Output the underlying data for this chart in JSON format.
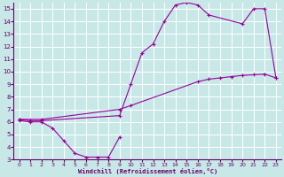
{
  "xlabel": "Windchill (Refroidissement éolien,°C)",
  "bg_color": "#c8e8e8",
  "grid_color": "#ffffff",
  "line_color": "#990099",
  "xlim": [
    -0.5,
    23.5
  ],
  "ylim": [
    3,
    15.5
  ],
  "xticks": [
    0,
    1,
    2,
    3,
    4,
    5,
    6,
    7,
    8,
    9,
    10,
    11,
    12,
    13,
    14,
    15,
    16,
    17,
    18,
    19,
    20,
    21,
    22,
    23
  ],
  "yticks": [
    3,
    4,
    5,
    6,
    7,
    8,
    9,
    10,
    11,
    12,
    13,
    14,
    15
  ],
  "curve1_x": [
    0,
    1,
    2,
    3,
    4,
    5,
    6,
    7,
    8,
    9
  ],
  "curve1_y": [
    6.1,
    6.0,
    6.0,
    5.5,
    4.5,
    3.5,
    3.2,
    3.2,
    3.2,
    4.8
  ],
  "curve2_x": [
    0,
    1,
    2,
    9,
    10,
    11,
    12,
    13,
    14,
    15,
    16,
    17,
    20,
    21,
    22,
    23
  ],
  "curve2_y": [
    6.2,
    6.1,
    6.1,
    6.5,
    9.0,
    11.5,
    12.2,
    14.0,
    15.3,
    15.5,
    15.3,
    14.5,
    13.8,
    15.0,
    15.0,
    9.5
  ],
  "curve3_x": [
    0,
    2,
    9,
    10,
    16,
    17,
    18,
    19,
    20,
    21,
    22,
    23
  ],
  "curve3_y": [
    6.2,
    6.2,
    7.0,
    7.3,
    9.2,
    9.4,
    9.5,
    9.6,
    9.7,
    9.75,
    9.8,
    9.5
  ]
}
